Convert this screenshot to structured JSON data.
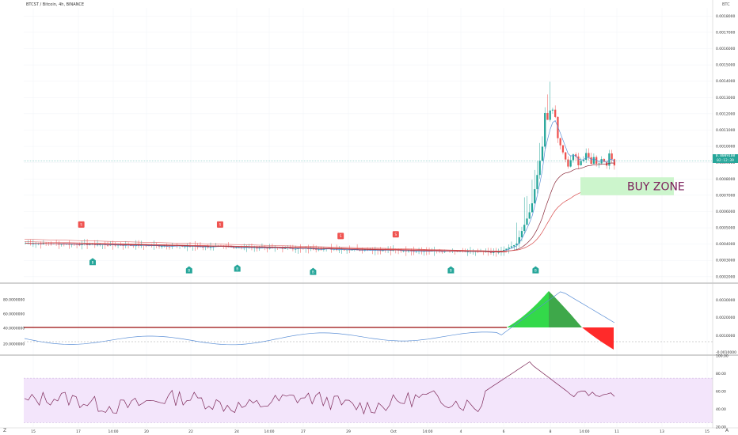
{
  "symbol_label": "BTCST / Bitcoin, 4h, BINANCE",
  "quote_currency": "BTC",
  "current_price": "0.0009108",
  "countdown": "02:12:39",
  "corner_left": "Z",
  "corner_right": "A",
  "colors": {
    "up": "#26a69a",
    "down": "#ef5350",
    "zone": "#ccf5cc",
    "zone_text": "#7b1f5a",
    "rsi_band": "#f3e5fb",
    "rsi_line": "#7e2a5a",
    "ema_fast": "#5b8fd6",
    "ema_mid": "#8a2a3a",
    "ema_slow": "#d84b4b",
    "osc_pos": "#33d94a",
    "osc_pos_dark": "#3ea84a",
    "osc_neg": "#ff2a2a",
    "osc_neg_dark": "#b02a2a"
  },
  "chart_data": [
    {
      "type": "candlestick",
      "panel": "price",
      "x_tick_labels": [
        "15",
        "17",
        "14:00",
        "20",
        "22",
        "24",
        "14:00",
        "27",
        "29",
        "Oct",
        "14:00",
        "4",
        "6",
        "8",
        "14:00",
        "11",
        "13",
        "15"
      ],
      "y_tick_labels": [
        "0.0018000",
        "0.0017000",
        "0.0016000",
        "0.0015000",
        "0.0014000",
        "0.0013000",
        "0.0012000",
        "0.0011000",
        "0.0010000",
        "0.0009000",
        "0.0008000",
        "0.0007000",
        "0.0006000",
        "0.0005000",
        "0.0004000",
        "0.0003000",
        "0.0002000"
      ],
      "ylim": [
        0.00017,
        0.00185
      ],
      "annotation": "BUY ZONE",
      "buy_zone": [
        0.0007,
        0.00081
      ],
      "signals_sell": [
        {
          "x": 0.0835,
          "y": 0.00052,
          "label": "S"
        },
        {
          "x": 0.285,
          "y": 0.00052,
          "label": "S"
        },
        {
          "x": 0.46,
          "y": 0.00045,
          "label": "S"
        },
        {
          "x": 0.54,
          "y": 0.00046,
          "label": "S"
        }
      ],
      "signals_buy": [
        {
          "x": 0.1,
          "y": 0.00029,
          "label": "B"
        },
        {
          "x": 0.24,
          "y": 0.00024,
          "label": "B"
        },
        {
          "x": 0.31,
          "y": 0.00025,
          "label": "B"
        },
        {
          "x": 0.42,
          "y": 0.00023,
          "label": "B"
        },
        {
          "x": 0.62,
          "y": 0.00024,
          "label": "B"
        },
        {
          "x": 0.743,
          "y": 0.00024,
          "label": "B"
        }
      ]
    },
    {
      "type": "area",
      "panel": "oscillator",
      "y_tick_labels_left": [
        "80.0000000",
        "60.0000000",
        "40.0000000",
        "20.0000000"
      ],
      "y_tick_labels_right": [
        "0.0030000",
        "0.0020000",
        "0.0010000",
        "-0.0010000",
        "-0.0020000"
      ]
    },
    {
      "type": "line",
      "panel": "rsi",
      "y_tick_labels": [
        "100.00",
        "80.00",
        "60.00",
        "40.00",
        "20.00"
      ],
      "ylim": [
        20,
        100
      ],
      "band": [
        25,
        75
      ]
    }
  ]
}
